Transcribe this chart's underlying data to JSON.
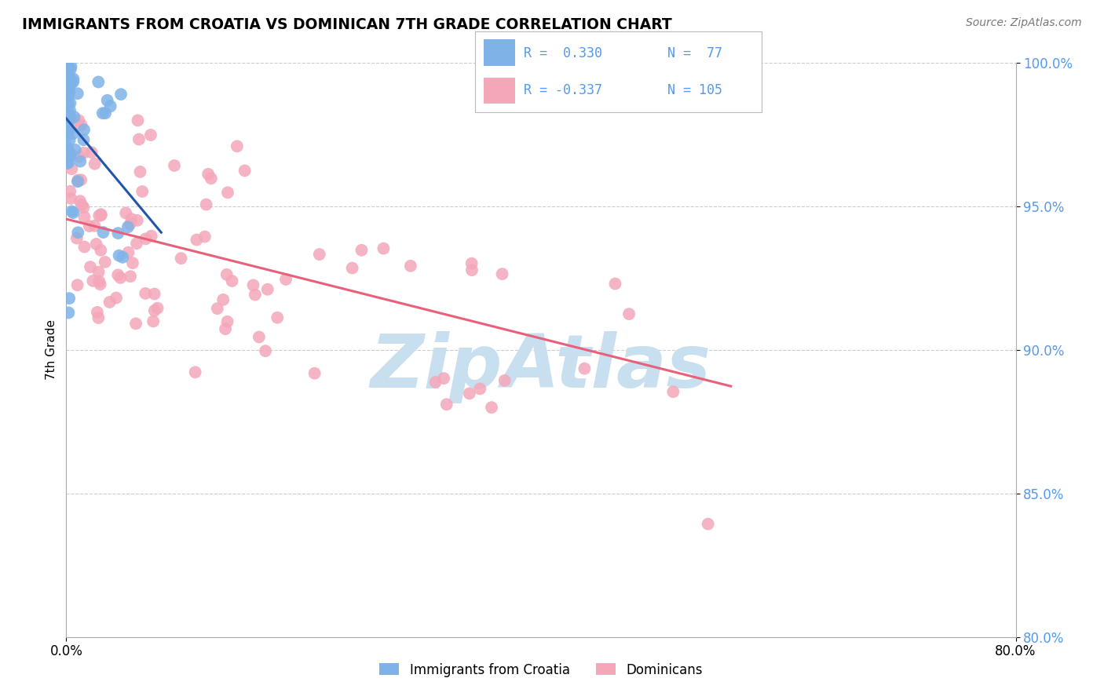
{
  "title": "IMMIGRANTS FROM CROATIA VS DOMINICAN 7TH GRADE CORRELATION CHART",
  "source": "Source: ZipAtlas.com",
  "ylabel": "7th Grade",
  "x_min": 0.0,
  "x_max": 80.0,
  "y_min": 80.0,
  "y_max": 100.0,
  "y_ticks": [
    80.0,
    85.0,
    90.0,
    95.0,
    100.0
  ],
  "y_tick_labels": [
    "80.0%",
    "85.0%",
    "90.0%",
    "95.0%",
    "100.0%"
  ],
  "blue_R": 0.33,
  "blue_N": 77,
  "pink_R": -0.337,
  "pink_N": 105,
  "blue_color": "#7fb3e8",
  "pink_color": "#f4a7b9",
  "blue_edge_color": "#5a9fd4",
  "pink_edge_color": "#e87fa0",
  "blue_line_color": "#2255aa",
  "pink_line_color": "#e8607a",
  "legend_blue_label": "Immigrants from Croatia",
  "legend_pink_label": "Dominicans",
  "watermark": "ZipAtlas",
  "watermark_color": "#c8dff0",
  "ytick_color": "#5599ee",
  "grid_color": "#cccccc"
}
